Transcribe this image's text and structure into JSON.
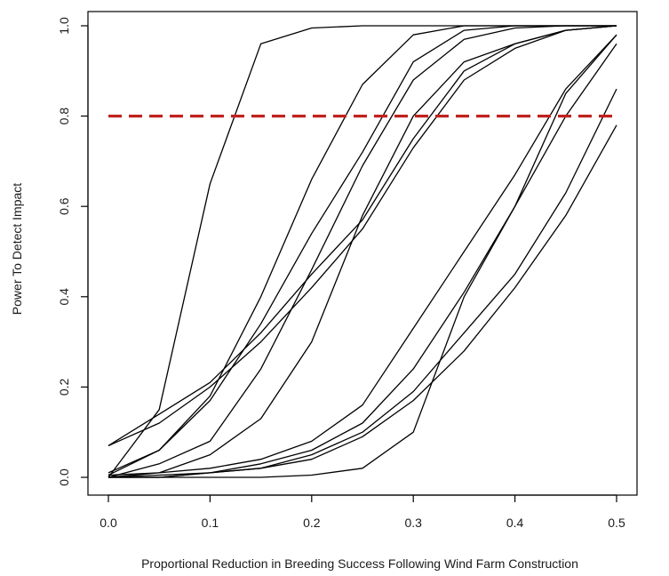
{
  "chart_data": {
    "type": "line",
    "title": "",
    "xlabel": "Proportional Reduction in Breeding Success Following Wind Farm Construction",
    "ylabel": "Power To Detect Impact",
    "xlim": [
      0.0,
      0.5
    ],
    "ylim": [
      0.0,
      1.0
    ],
    "x_ticks": [
      0.0,
      0.1,
      0.2,
      0.3,
      0.4,
      0.5
    ],
    "x_tick_labels": [
      "0.0",
      "0.1",
      "0.2",
      "0.3",
      "0.4",
      "0.5"
    ],
    "y_ticks": [
      0.0,
      0.2,
      0.4,
      0.6,
      0.8,
      1.0
    ],
    "y_tick_labels": [
      "0.0",
      "0.2",
      "0.4",
      "0.6",
      "0.8",
      "1.0"
    ],
    "grid": false,
    "legend": false,
    "x": [
      0.0,
      0.05,
      0.1,
      0.15,
      0.2,
      0.25,
      0.3,
      0.35,
      0.4,
      0.45,
      0.5
    ],
    "series": [
      {
        "color": "#000000",
        "values": [
          0.0,
          0.15,
          0.65,
          0.96,
          0.995,
          1.0,
          1.0,
          1.0,
          1.0,
          1.0,
          1.0
        ]
      },
      {
        "color": "#000000",
        "values": [
          0.005,
          0.06,
          0.18,
          0.4,
          0.66,
          0.87,
          0.98,
          1.0,
          1.0,
          1.0,
          1.0
        ]
      },
      {
        "color": "#000000",
        "values": [
          0.01,
          0.06,
          0.17,
          0.34,
          0.54,
          0.72,
          0.92,
          0.99,
          1.0,
          1.0,
          1.0
        ]
      },
      {
        "color": "#000000",
        "values": [
          0.0,
          0.03,
          0.08,
          0.24,
          0.46,
          0.69,
          0.88,
          0.97,
          0.995,
          1.0,
          1.0
        ]
      },
      {
        "color": "#000000",
        "values": [
          0.07,
          0.14,
          0.21,
          0.32,
          0.45,
          0.57,
          0.75,
          0.9,
          0.96,
          0.99,
          1.0
        ]
      },
      {
        "color": "#000000",
        "values": [
          0.07,
          0.12,
          0.2,
          0.3,
          0.42,
          0.55,
          0.73,
          0.88,
          0.95,
          0.99,
          1.0
        ]
      },
      {
        "color": "#000000",
        "values": [
          0.005,
          0.01,
          0.05,
          0.13,
          0.3,
          0.58,
          0.8,
          0.92,
          0.96,
          0.99,
          1.0
        ]
      },
      {
        "color": "#000000",
        "values": [
          0.0,
          0.01,
          0.02,
          0.04,
          0.08,
          0.16,
          0.33,
          0.5,
          0.67,
          0.86,
          0.98
        ]
      },
      {
        "color": "#000000",
        "values": [
          0.0,
          0.005,
          0.01,
          0.03,
          0.06,
          0.12,
          0.24,
          0.41,
          0.6,
          0.8,
          0.96
        ]
      },
      {
        "color": "#000000",
        "values": [
          0.0,
          0.0,
          0.01,
          0.02,
          0.05,
          0.1,
          0.19,
          0.32,
          0.45,
          0.63,
          0.86
        ]
      },
      {
        "color": "#000000",
        "values": [
          0.0,
          0.0,
          0.01,
          0.02,
          0.04,
          0.09,
          0.17,
          0.28,
          0.42,
          0.58,
          0.78
        ]
      },
      {
        "color": "#000000",
        "values": [
          0.0,
          0.0,
          0.0,
          0.0,
          0.005,
          0.02,
          0.1,
          0.4,
          0.6,
          0.85,
          0.98
        ]
      }
    ],
    "reference_line": {
      "y": 0.8,
      "style": "dashed",
      "color": "#c0221f"
    }
  }
}
